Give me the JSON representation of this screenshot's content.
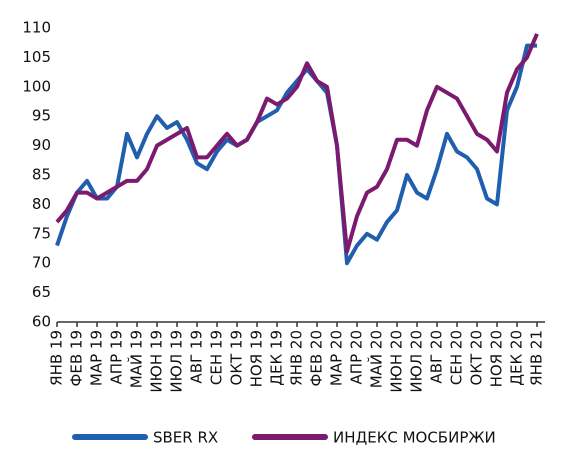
{
  "chart_data": {
    "type": "line",
    "categories": [
      "ЯНВ 19",
      null,
      "ФЕВ 19",
      null,
      "МАР 19",
      null,
      "АПР 19",
      null,
      "МАЙ 19",
      null,
      "ИЮН 19",
      null,
      "ИЮЛ 19",
      null,
      "АВГ 19",
      null,
      "СЕН 19",
      null,
      "ОКТ 19",
      null,
      "НОЯ 19",
      null,
      "ДЕК 19",
      null,
      "ЯНВ 20",
      null,
      "ФЕВ 20",
      null,
      "МАР 20",
      null,
      "АПР 20",
      null,
      "МАЙ 20",
      null,
      "ИЮН 20",
      null,
      "ИЮЛ 20",
      null,
      "АВГ 20",
      null,
      "СЕН 20",
      null,
      "ОКТ 20",
      null,
      "НОЯ 20",
      null,
      "ДЕК 20",
      null,
      "ЯНВ 21"
    ],
    "series": [
      {
        "name": "SBER RX",
        "color": "#1f5fae",
        "values": [
          73,
          78,
          82,
          84,
          81,
          81,
          83,
          92,
          88,
          92,
          95,
          93,
          94,
          91,
          87,
          86,
          89,
          91,
          90,
          91,
          94,
          95,
          96,
          99,
          101,
          103,
          101,
          99,
          90,
          70,
          73,
          75,
          74,
          77,
          79,
          85,
          82,
          81,
          86,
          92,
          89,
          88,
          86,
          81,
          80,
          96,
          100,
          107,
          107
        ]
      },
      {
        "name": "ИНДЕКС МОСБИРЖИ",
        "color": "#7b1a6e",
        "values": [
          77,
          79,
          82,
          82,
          81,
          82,
          83,
          84,
          84,
          86,
          90,
          91,
          92,
          93,
          88,
          88,
          90,
          92,
          90,
          91,
          94,
          98,
          97,
          98,
          100,
          104,
          101,
          100,
          90,
          72,
          78,
          82,
          83,
          86,
          91,
          91,
          90,
          96,
          100,
          99,
          98,
          95,
          92,
          91,
          89,
          99,
          103,
          105,
          109
        ]
      }
    ],
    "ylim": [
      60,
      110
    ],
    "yticks": [
      60,
      65,
      70,
      75,
      80,
      85,
      90,
      95,
      100,
      105,
      110
    ]
  }
}
